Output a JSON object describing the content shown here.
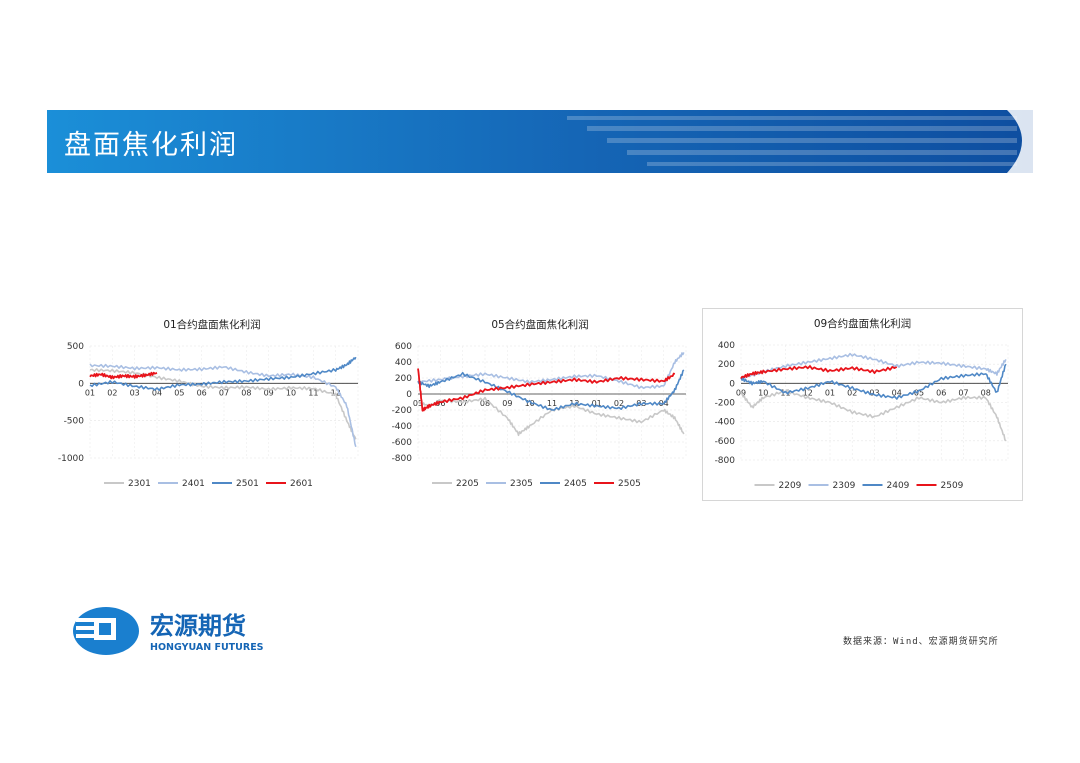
{
  "page": {
    "title": "盘面焦化利润",
    "source": "数据来源：Wind、宏源期货研究所",
    "logo_cn": "宏源期货",
    "logo_en": "HONGYUAN FUTURES"
  },
  "colors": {
    "banner": "#1a6fc4",
    "gray": "#c8c8c8",
    "light_blue": "#a9bfe3",
    "blue": "#4f88c6",
    "red": "#e8141b"
  },
  "chart_data": [
    {
      "type": "line",
      "title": "01合约盘面焦化利润",
      "ylim": [
        -1000,
        500
      ],
      "yticks": [
        500,
        0,
        -500,
        -1000
      ],
      "xticks": [
        "01",
        "02",
        "03",
        "04",
        "05",
        "06",
        "07",
        "08",
        "09",
        "10",
        "11",
        "12"
      ],
      "legend": [
        "2301",
        "2401",
        "2501",
        "2601"
      ],
      "series": [
        {
          "name": "2301",
          "x": [
            0,
            1,
            2,
            3,
            4,
            5,
            6,
            7,
            8,
            9,
            10,
            11,
            11.5,
            11.9
          ],
          "y": [
            180,
            170,
            140,
            80,
            30,
            -40,
            -60,
            -50,
            -80,
            -60,
            -70,
            -150,
            -500,
            -750
          ]
        },
        {
          "name": "2401",
          "x": [
            0,
            1,
            2,
            3,
            4,
            5,
            6,
            7,
            8,
            9,
            10,
            11,
            11.5,
            11.9
          ],
          "y": [
            240,
            230,
            200,
            210,
            180,
            190,
            220,
            150,
            100,
            120,
            80,
            -50,
            -300,
            -850
          ]
        },
        {
          "name": "2501",
          "x": [
            0,
            1,
            2,
            3,
            4,
            5,
            6,
            7,
            8,
            9,
            10,
            11,
            11.5,
            11.9
          ],
          "y": [
            -30,
            20,
            -40,
            -80,
            -20,
            -10,
            20,
            30,
            60,
            80,
            130,
            180,
            250,
            350
          ]
        },
        {
          "name": "2601",
          "x": [
            0,
            0.5,
            1,
            1.5,
            2,
            2.5,
            3
          ],
          "y": [
            100,
            120,
            80,
            100,
            90,
            110,
            140
          ]
        }
      ]
    },
    {
      "type": "line",
      "title": "05合约盘面焦化利润",
      "ylim": [
        -800,
        600
      ],
      "yticks": [
        600,
        400,
        200,
        0,
        -200,
        -400,
        -600,
        -800
      ],
      "xticks": [
        "05",
        "06",
        "07",
        "08",
        "09",
        "10",
        "11",
        "12",
        "01",
        "02",
        "03",
        "04"
      ],
      "legend": [
        "2205",
        "2305",
        "2405",
        "2505"
      ],
      "series": [
        {
          "name": "2205",
          "x": [
            0,
            0.5,
            1,
            2,
            3,
            4,
            4.5,
            5,
            6,
            7,
            8,
            9,
            10,
            11,
            11.5,
            11.9
          ],
          "y": [
            -100,
            -150,
            -80,
            -100,
            -60,
            -300,
            -500,
            -400,
            -200,
            -150,
            -250,
            -300,
            -350,
            -200,
            -300,
            -500
          ]
        },
        {
          "name": "2305",
          "x": [
            0,
            1,
            2,
            3,
            4,
            5,
            6,
            7,
            8,
            9,
            10,
            11,
            11.5,
            11.9
          ],
          "y": [
            150,
            180,
            220,
            250,
            200,
            150,
            180,
            220,
            230,
            160,
            80,
            100,
            400,
            520
          ]
        },
        {
          "name": "2405",
          "x": [
            0,
            0.5,
            1,
            2,
            3,
            4,
            5,
            6,
            7,
            8,
            9,
            10,
            11,
            11.5,
            11.9
          ],
          "y": [
            150,
            100,
            150,
            250,
            150,
            30,
            -100,
            -200,
            -120,
            -150,
            -180,
            -120,
            -120,
            50,
            300
          ]
        },
        {
          "name": "2505",
          "x": [
            0,
            0.2,
            0.5,
            1,
            2,
            3,
            4,
            5,
            6,
            7,
            8,
            9,
            10,
            11,
            11.5
          ],
          "y": [
            330,
            -200,
            -150,
            -100,
            -50,
            50,
            80,
            120,
            150,
            180,
            150,
            200,
            180,
            160,
            250
          ]
        }
      ]
    },
    {
      "type": "line",
      "title": "09合约盘面焦化利润",
      "ylim": [
        -800,
        400
      ],
      "yticks": [
        400,
        200,
        0,
        -200,
        -400,
        -600,
        -800
      ],
      "xticks": [
        "09",
        "10",
        "11",
        "12",
        "01",
        "02",
        "03",
        "04",
        "05",
        "06",
        "07",
        "08"
      ],
      "legend": [
        "2209",
        "2309",
        "2409",
        "2509"
      ],
      "series": [
        {
          "name": "2209",
          "x": [
            0,
            0.5,
            1,
            2,
            3,
            4,
            5,
            6,
            7,
            8,
            9,
            10,
            11,
            11.5,
            11.9
          ],
          "y": [
            -100,
            -250,
            -150,
            -80,
            -150,
            -200,
            -300,
            -350,
            -250,
            -150,
            -200,
            -150,
            -150,
            -350,
            -600
          ]
        },
        {
          "name": "2309",
          "x": [
            0,
            1,
            2,
            3,
            4,
            5,
            6,
            7,
            8,
            9,
            10,
            11,
            11.5,
            11.9
          ],
          "y": [
            50,
            120,
            180,
            220,
            260,
            300,
            250,
            180,
            220,
            210,
            180,
            150,
            100,
            250
          ]
        },
        {
          "name": "2409",
          "x": [
            0,
            0.5,
            1,
            2,
            3,
            4,
            5,
            6,
            7,
            8,
            9,
            10,
            11,
            11.5,
            11.9
          ],
          "y": [
            50,
            0,
            20,
            -100,
            -50,
            20,
            -50,
            -120,
            -150,
            -80,
            50,
            80,
            100,
            -100,
            200
          ]
        },
        {
          "name": "2509",
          "x": [
            0,
            0.5,
            1,
            2,
            3,
            4,
            5,
            6,
            7
          ],
          "y": [
            60,
            100,
            120,
            150,
            170,
            130,
            160,
            120,
            170
          ]
        }
      ]
    }
  ]
}
